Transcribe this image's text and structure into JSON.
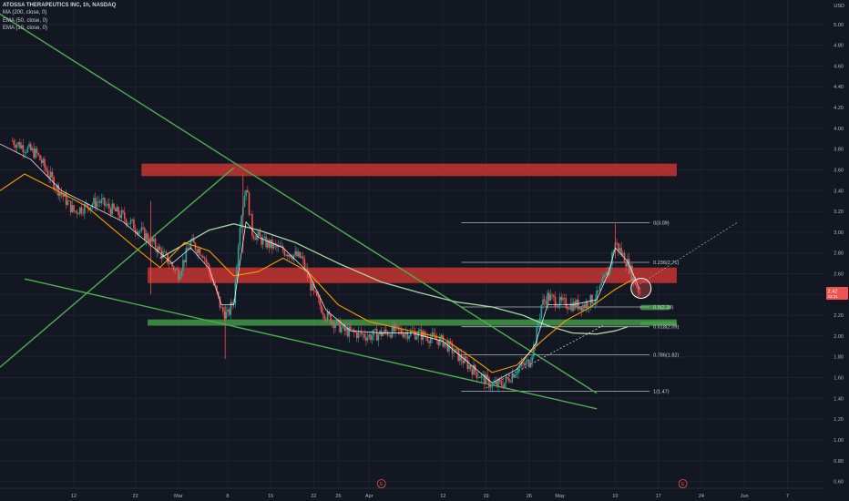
{
  "legend": {
    "title": "ATOSSA THERAPEUTICS INC, 1h, NASDAQ",
    "ma200": "MA (200, close, 0)",
    "ema50": "EMA (50, close, 0)",
    "ema10": "EMA (10, close, 0)"
  },
  "colors": {
    "background": "#131722",
    "grid": "#1e2230",
    "up": "#26a69a",
    "down": "#ef5350",
    "ma200": "#a5d6a7",
    "ema50": "#ff9800",
    "ema10": "#ffffff",
    "trendline": "#4caf50",
    "resistance_zone": "#e53935",
    "support_zone": "#43a047",
    "fib_line": "#b2b5be",
    "last_price": "#ef5350"
  },
  "chart_data": {
    "type": "candlestick",
    "currency": "USD",
    "timeframe": "1h",
    "grid": true,
    "ylim": [
      0.5,
      5.2
    ],
    "y_ticks": [
      "0.60",
      "0.80",
      "1.00",
      "1.20",
      "1.40",
      "1.60",
      "1.80",
      "2.00",
      "2.20",
      "2.40",
      "2.60",
      "2.80",
      "3.00",
      "3.20",
      "3.40",
      "3.60",
      "3.80",
      "4.00",
      "4.20",
      "4.40",
      "4.60",
      "4.80",
      "5.00"
    ],
    "x_ticks": [
      "12",
      "22",
      "Mar",
      "8",
      "15",
      "22",
      "26",
      "Apr",
      "12",
      "19",
      "26",
      "May",
      "10",
      "17",
      "24",
      "Jun",
      "7"
    ],
    "x_tick_days": [
      12,
      22,
      29,
      37,
      44,
      51,
      55,
      60,
      72,
      79,
      86,
      91,
      100,
      107,
      114,
      121,
      128
    ],
    "earnings_markers": [
      {
        "day": 62,
        "label": "E"
      },
      {
        "day": 111,
        "label": "E"
      }
    ],
    "last_price": {
      "label": "2.42",
      "value": 2.42,
      "sublabel": "23:41"
    },
    "candle_anchors": [
      [
        2,
        3.88
      ],
      [
        6,
        3.75
      ],
      [
        9,
        3.45
      ],
      [
        12,
        3.2
      ],
      [
        16,
        3.3
      ],
      [
        20,
        3.15
      ],
      [
        24,
        2.95
      ],
      [
        27,
        2.75
      ],
      [
        29,
        2.6
      ],
      [
        31,
        2.9
      ],
      [
        33,
        2.8
      ],
      [
        35,
        2.45
      ],
      [
        36,
        2.25
      ],
      [
        37,
        2.2
      ],
      [
        38,
        2.35
      ],
      [
        39,
        3.1
      ],
      [
        40,
        3.45
      ],
      [
        41,
        3.0
      ],
      [
        43,
        2.9
      ],
      [
        45,
        2.85
      ],
      [
        47,
        2.8
      ],
      [
        49,
        2.75
      ],
      [
        51,
        2.4
      ],
      [
        53,
        2.2
      ],
      [
        56,
        2.05
      ],
      [
        60,
        2.0
      ],
      [
        64,
        2.05
      ],
      [
        68,
        2.02
      ],
      [
        72,
        1.95
      ],
      [
        75,
        1.78
      ],
      [
        78,
        1.62
      ],
      [
        80,
        1.52
      ],
      [
        82,
        1.55
      ],
      [
        84,
        1.68
      ],
      [
        86,
        1.75
      ],
      [
        87,
        1.95
      ],
      [
        88,
        2.3
      ],
      [
        89,
        2.38
      ],
      [
        91,
        2.32
      ],
      [
        93,
        2.3
      ],
      [
        95,
        2.3
      ],
      [
        97,
        2.38
      ],
      [
        99,
        2.65
      ],
      [
        100,
        2.9
      ],
      [
        101,
        2.8
      ],
      [
        102,
        2.7
      ],
      [
        103,
        2.55
      ],
      [
        104,
        2.42
      ]
    ],
    "ma200_points": [
      [
        26,
        2.75
      ],
      [
        34,
        3.02
      ],
      [
        38,
        3.08
      ],
      [
        42,
        3.02
      ],
      [
        48,
        2.9
      ],
      [
        55,
        2.7
      ],
      [
        62,
        2.52
      ],
      [
        68,
        2.42
      ],
      [
        74,
        2.33
      ],
      [
        80,
        2.28
      ],
      [
        85,
        2.2
      ],
      [
        89,
        2.1
      ],
      [
        93,
        2.03
      ],
      [
        97,
        2.02
      ],
      [
        100,
        2.05
      ],
      [
        102,
        2.09
      ]
    ],
    "ema50_points": [
      [
        0,
        3.4
      ],
      [
        4,
        3.56
      ],
      [
        10,
        3.38
      ],
      [
        14,
        3.25
      ],
      [
        18,
        3.05
      ],
      [
        22,
        2.85
      ],
      [
        26,
        2.66
      ],
      [
        30,
        2.9
      ],
      [
        34,
        2.82
      ],
      [
        38,
        2.58
      ],
      [
        42,
        2.62
      ],
      [
        46,
        2.75
      ],
      [
        50,
        2.62
      ],
      [
        55,
        2.3
      ],
      [
        60,
        2.14
      ],
      [
        66,
        2.06
      ],
      [
        72,
        1.98
      ],
      [
        77,
        1.78
      ],
      [
        80,
        1.65
      ],
      [
        84,
        1.72
      ],
      [
        88,
        1.95
      ],
      [
        92,
        2.15
      ],
      [
        96,
        2.28
      ],
      [
        100,
        2.45
      ],
      [
        103,
        2.55
      ]
    ],
    "ema10_points": [
      [
        0,
        3.85
      ],
      [
        5,
        3.7
      ],
      [
        10,
        3.4
      ],
      [
        15,
        3.25
      ],
      [
        20,
        3.1
      ],
      [
        25,
        2.85
      ],
      [
        28,
        2.7
      ],
      [
        31,
        2.85
      ],
      [
        34,
        2.65
      ],
      [
        36,
        2.3
      ],
      [
        38,
        2.3
      ],
      [
        40,
        3.1
      ],
      [
        42,
        2.95
      ],
      [
        46,
        2.85
      ],
      [
        50,
        2.62
      ],
      [
        53,
        2.25
      ],
      [
        57,
        2.05
      ],
      [
        62,
        2.03
      ],
      [
        67,
        2.03
      ],
      [
        72,
        1.95
      ],
      [
        76,
        1.75
      ],
      [
        80,
        1.55
      ],
      [
        84,
        1.68
      ],
      [
        87,
        1.92
      ],
      [
        89,
        2.3
      ],
      [
        93,
        2.3
      ],
      [
        97,
        2.35
      ],
      [
        99,
        2.62
      ],
      [
        100,
        2.85
      ],
      [
        102,
        2.72
      ],
      [
        104,
        2.45
      ]
    ],
    "fib_levels": [
      {
        "label": "0(3.09)",
        "value": 3.09
      },
      {
        "label": "0.236(2.71)",
        "value": 2.71
      },
      {
        "label": "0.5(2.28)",
        "value": 2.28
      },
      {
        "label": "0.618(2.09)",
        "value": 2.09
      },
      {
        "label": "0.786(1.82)",
        "value": 1.82
      },
      {
        "label": "1(1.47)",
        "value": 1.47
      }
    ],
    "fib_day_range": [
      75,
      105
    ],
    "zones": [
      {
        "kind": "resistance",
        "y_top": 3.66,
        "y_bottom": 3.54,
        "day_start": 23,
        "day_end": 110
      },
      {
        "kind": "resistance",
        "y_top": 2.66,
        "y_bottom": 2.51,
        "day_start": 24,
        "day_end": 110
      },
      {
        "kind": "support",
        "y_top": 2.16,
        "y_bottom": 2.1,
        "day_start": 24,
        "day_end": 110
      }
    ],
    "trendlines": [
      {
        "from": [
          0,
          5.1
        ],
        "to": [
          97,
          1.45
        ]
      },
      {
        "from": [
          0,
          1.7
        ],
        "to": [
          38,
          3.62
        ]
      },
      {
        "from": [
          4,
          2.55
        ],
        "to": [
          97,
          1.3
        ]
      }
    ]
  }
}
